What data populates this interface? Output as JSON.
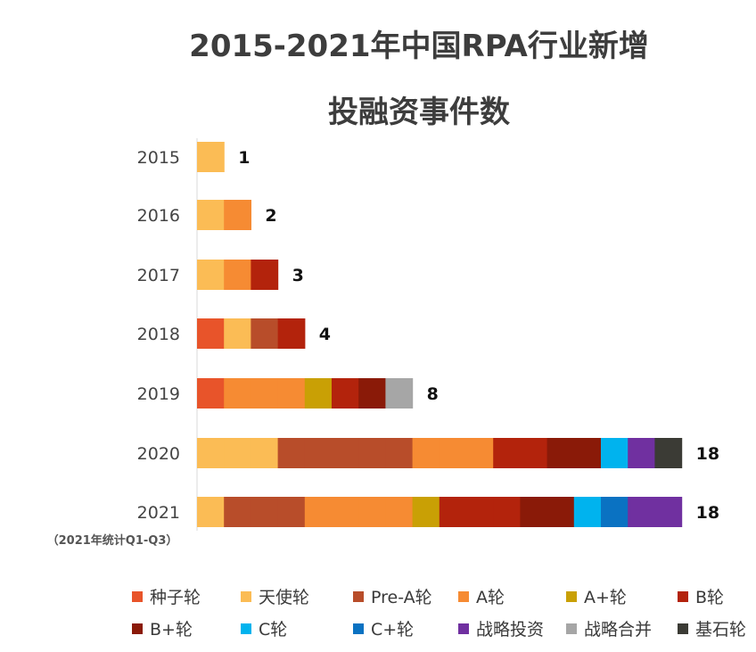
{
  "title_line1": "2015-2021年中国RPA行业新增",
  "title_line2": "投融资事件数",
  "chart_data": {
    "type": "bar",
    "orientation": "horizontal",
    "stacked": true,
    "title": "2015-2021年中国RPA行业新增投融资事件数",
    "categories": [
      "2015",
      "2016",
      "2017",
      "2018",
      "2019",
      "2020",
      "2021"
    ],
    "category_notes": {
      "2021": "（2021年统计Q1-Q3）"
    },
    "totals": [
      1,
      2,
      3,
      4,
      8,
      18,
      18
    ],
    "grid": false,
    "legend_position": "bottom",
    "series": [
      {
        "name": "种子轮",
        "color": "#e8542a",
        "values": [
          0,
          0,
          0,
          1,
          1,
          0,
          0
        ]
      },
      {
        "name": "天使轮",
        "color": "#fbbc55",
        "values": [
          1,
          1,
          1,
          1,
          0,
          3,
          1
        ]
      },
      {
        "name": "Pre-A轮",
        "color": "#b84d2a",
        "values": [
          0,
          0,
          0,
          1,
          0,
          5,
          3
        ]
      },
      {
        "name": "A轮",
        "color": "#f68b33",
        "values": [
          0,
          1,
          1,
          0,
          3,
          3,
          4
        ]
      },
      {
        "name": "A+轮",
        "color": "#c9a005",
        "values": [
          0,
          0,
          0,
          0,
          1,
          0,
          1
        ]
      },
      {
        "name": "B轮",
        "color": "#b3230c",
        "values": [
          0,
          0,
          1,
          1,
          1,
          2,
          3
        ]
      },
      {
        "name": "B+轮",
        "color": "#8a1a08",
        "values": [
          0,
          0,
          0,
          0,
          1,
          2,
          2
        ]
      },
      {
        "name": "C轮",
        "color": "#00b3ee",
        "values": [
          0,
          0,
          0,
          0,
          0,
          1,
          1
        ]
      },
      {
        "name": "C+轮",
        "color": "#0a72c2",
        "values": [
          0,
          0,
          0,
          0,
          0,
          0,
          1
        ]
      },
      {
        "name": "战略投资",
        "color": "#7030a0",
        "values": [
          0,
          0,
          0,
          0,
          0,
          1,
          2
        ]
      },
      {
        "name": "战略合并",
        "color": "#a6a6a6",
        "values": [
          0,
          0,
          0,
          0,
          1,
          0,
          0
        ]
      },
      {
        "name": "基石轮",
        "color": "#3b3b35",
        "values": [
          0,
          0,
          0,
          0,
          0,
          1,
          0
        ]
      }
    ],
    "stack_order": [
      [
        1
      ],
      [
        1,
        3
      ],
      [
        1,
        3,
        5
      ],
      [
        0,
        1,
        2,
        5
      ],
      [
        0,
        3,
        3,
        3,
        4,
        5,
        6,
        10
      ],
      [
        1,
        1,
        1,
        2,
        2,
        2,
        2,
        2,
        3,
        3,
        3,
        5,
        5,
        6,
        6,
        7,
        9,
        11
      ],
      [
        1,
        2,
        2,
        2,
        3,
        3,
        3,
        3,
        4,
        5,
        5,
        5,
        6,
        6,
        7,
        8,
        9,
        9
      ]
    ]
  }
}
